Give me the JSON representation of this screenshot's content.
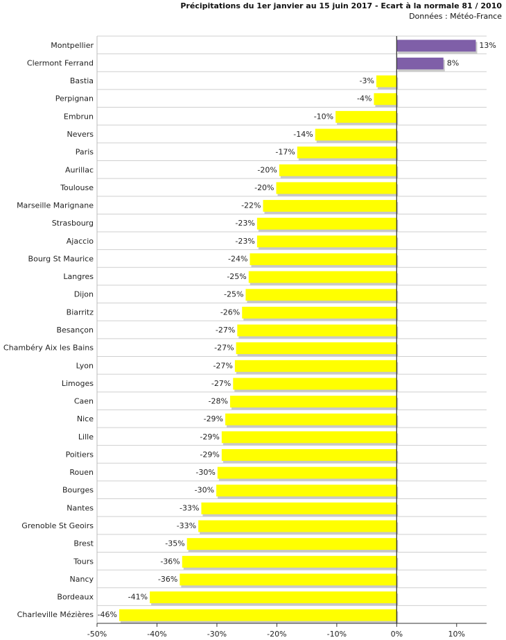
{
  "chart_data": {
    "type": "bar",
    "orientation": "horizontal",
    "title": "Précipitations du 1er janvier au 15 juin 2017 - Ecart à la normale 81 / 2010",
    "subtitle": "Données : Météo-France",
    "xlabel": "",
    "ylabel": "",
    "xlim": [
      -50,
      15
    ],
    "x_ticks": [
      "-50%",
      "-40%",
      "-30%",
      "-20%",
      "-10%",
      "0%",
      "10%"
    ],
    "grid": "horizontal row separators",
    "legend": "none",
    "colors": {
      "positive": "#7f5fa8",
      "negative": "#ffff00"
    },
    "categories": [
      "Montpellier",
      "Clermont Ferrand",
      "Bastia",
      "Perpignan",
      "Embrun",
      "Nevers",
      "Paris",
      "Aurillac",
      "Toulouse",
      "Marseille Marignane",
      "Strasbourg",
      "Ajaccio",
      "Bourg St Maurice",
      "Langres",
      "Dijon",
      "Biarritz",
      "Besançon",
      "Chambéry Aix les Bains",
      "Lyon",
      "Limoges",
      "Caen",
      "Nice",
      "Lille",
      "Poitiers",
      "Rouen",
      "Bourges",
      "Nantes",
      "Grenoble St Geoirs",
      "Brest",
      "Tours",
      "Nancy",
      "Bordeaux",
      "Charleville Mézières"
    ],
    "values": [
      13.2,
      7.8,
      -3.4,
      -3.8,
      -10.2,
      -13.6,
      -16.6,
      -19.6,
      -20.1,
      -22.3,
      -23.3,
      -23.3,
      -24.5,
      -24.7,
      -25.2,
      -25.8,
      -26.6,
      -26.8,
      -27.0,
      -27.3,
      -27.8,
      -28.6,
      -29.2,
      -29.2,
      -29.9,
      -30.1,
      -32.6,
      -33.1,
      -35.0,
      -35.8,
      -36.2,
      -41.2,
      -46.3
    ],
    "value_labels": [
      "13%",
      "8%",
      "-3%",
      "-4%",
      "-10%",
      "-14%",
      "-17%",
      "-20%",
      "-20%",
      "-22%",
      "-23%",
      "-23%",
      "-24%",
      "-25%",
      "-25%",
      "-26%",
      "-27%",
      "-27%",
      "-27%",
      "-27%",
      "-28%",
      "-29%",
      "-29%",
      "-29%",
      "-30%",
      "-30%",
      "-33%",
      "-33%",
      "-35%",
      "-36%",
      "-36%",
      "-41%",
      "-46%"
    ]
  }
}
